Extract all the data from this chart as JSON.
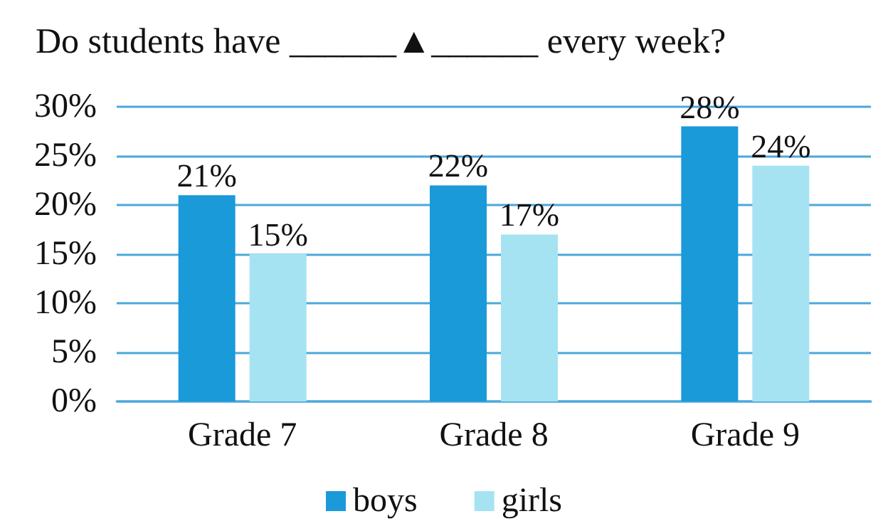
{
  "chart_data": {
    "type": "bar",
    "title": "Do students have ______▲______ every week?",
    "categories": [
      "Grade 7",
      "Grade 8",
      "Grade 9"
    ],
    "series": [
      {
        "name": "boys",
        "color": "#1a9ad9",
        "values": [
          21,
          22,
          28
        ],
        "value_labels": [
          "21%",
          "22%",
          "28%"
        ]
      },
      {
        "name": "girls",
        "color": "#a6e3f2",
        "values": [
          15,
          17,
          24
        ],
        "value_labels": [
          "15%",
          "17%",
          "24%"
        ]
      }
    ],
    "ylim": [
      0,
      30
    ],
    "yticks": [
      {
        "value": 0,
        "label": "0%"
      },
      {
        "value": 5,
        "label": "5%"
      },
      {
        "value": 10,
        "label": "10%"
      },
      {
        "value": 15,
        "label": "15%"
      },
      {
        "value": 20,
        "label": "20%"
      },
      {
        "value": 25,
        "label": "25%"
      },
      {
        "value": 30,
        "label": "30%"
      }
    ],
    "grid": "y",
    "legend": "bottom"
  }
}
